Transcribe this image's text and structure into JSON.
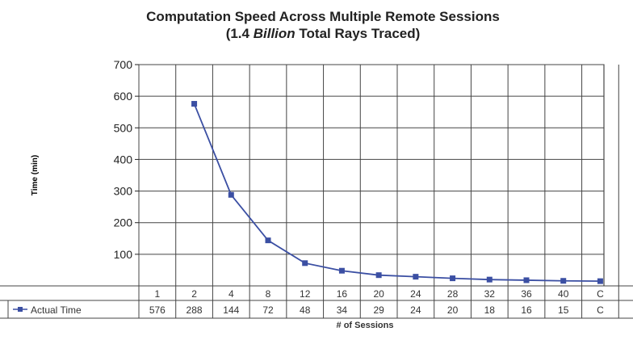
{
  "chart_data": {
    "type": "line",
    "title": "Computation Speed Across Multiple Remote Sessions",
    "subtitle_prefix": "(1.4 ",
    "subtitle_emphasis": "Billion",
    "subtitle_suffix": "  Total Rays Traced)",
    "ylabel": "Time (min)",
    "xlabel": "# of Sessions",
    "ylim": [
      0,
      700
    ],
    "yticks": [
      0,
      100,
      200,
      300,
      400,
      500,
      600,
      700
    ],
    "grid": true,
    "series": [
      {
        "name": "Actual Time",
        "color": "#3b4fa3",
        "values": [
          576,
          288,
          144,
          72,
          48,
          34,
          29,
          24,
          20,
          18,
          16,
          15
        ]
      }
    ],
    "table": {
      "header_cells": [
        "1",
        "2",
        "4",
        "8",
        "12",
        "16",
        "20",
        "24",
        "28",
        "32",
        "36",
        "40",
        "C"
      ],
      "row_label": "Actual Time",
      "row_values": [
        "576",
        "288",
        "144",
        "72",
        "48",
        "34",
        "29",
        "24",
        "20",
        "18",
        "16",
        "15",
        "C"
      ]
    }
  }
}
